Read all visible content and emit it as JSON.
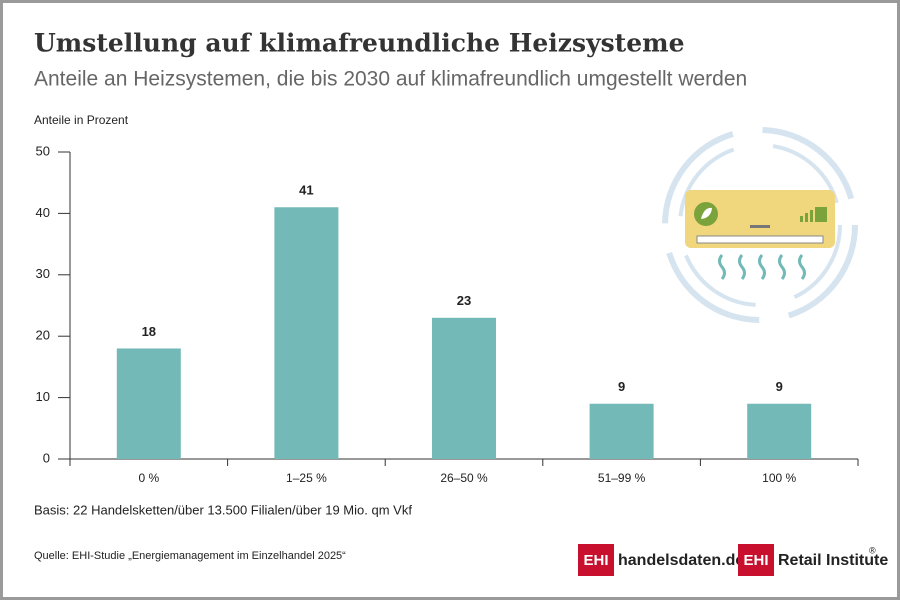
{
  "chart_data": {
    "type": "bar",
    "title": "Umstellung auf klimafreundliche Heizsysteme",
    "subtitle": "Anteile an Heizsystemen, die bis 2030 auf klimafreundlich umgestellt werden",
    "y_label": "Anteile in Prozent",
    "categories": [
      "0 %",
      "1–25 %",
      "26–50 %",
      "51–99 %",
      "100 %"
    ],
    "values": [
      18,
      41,
      23,
      9,
      9
    ],
    "color": "#72b9b7",
    "ylim": [
      0,
      50
    ],
    "yticks": [
      0,
      10,
      20,
      30,
      40,
      50
    ],
    "grid": false
  },
  "footer": {
    "basis": "Basis: 22 Handelsketten/über 13.500 Filialen/über 19 Mio. qm Vkf",
    "source": "Quelle: EHI-Studie „Energiemanagement im Einzelhandel 2025“",
    "logo1": {
      "mark": "EHI",
      "text": "handelsdaten.de"
    },
    "logo2": {
      "mark": "EHI",
      "text": "Retail Institute",
      "sup": "®"
    }
  }
}
